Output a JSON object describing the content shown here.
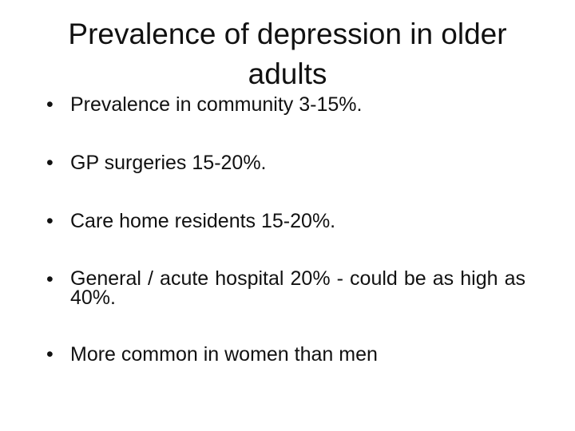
{
  "slide": {
    "title": "Prevalence of depression in older adults",
    "bullet_glyph": "•",
    "bullets": [
      "Prevalence in community 3-15%.",
      "GP surgeries 15-20%.",
      "Care home residents 15-20%.",
      "General / acute hospital 20% - could be as high as 40%.",
      "More common in women than men"
    ]
  }
}
